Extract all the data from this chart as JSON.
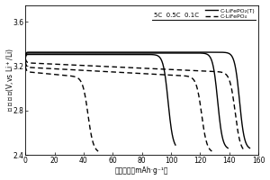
{
  "ylabel_parts": [
    "放",
    "电",
    "电",
    "压",
    "(V,vs Li⁺/Li)"
  ],
  "xlabel_parts": [
    "放电容量（mAh·g⁻¹）"
  ],
  "xlim": [
    0,
    160
  ],
  "ylim": [
    2.4,
    3.75
  ],
  "yticks": [
    2.4,
    2.8,
    3.2,
    3.6
  ],
  "xticks": [
    0,
    20,
    40,
    60,
    80,
    100,
    120,
    140,
    160
  ],
  "legend_solid": "C-LiFePO₂(T)",
  "legend_dashed": "C-LiFePO₄",
  "rate_labels": "5C  0.5C  0.1C"
}
